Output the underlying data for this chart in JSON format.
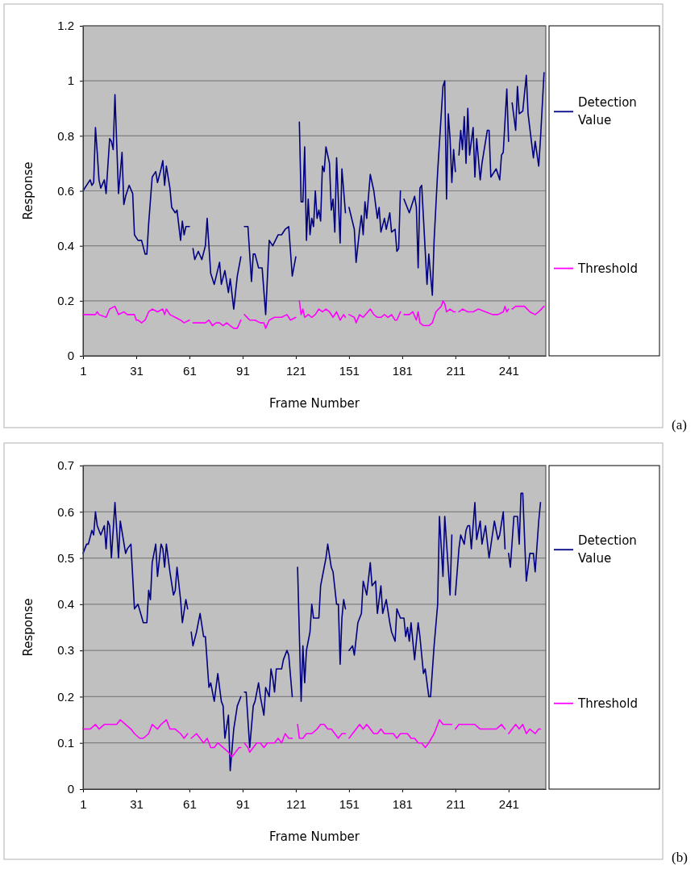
{
  "chart_data": [
    {
      "type": "line",
      "xlabel": "Frame Number",
      "ylabel": "Response",
      "xlim": [
        1,
        262
      ],
      "xticks": [
        1,
        31,
        61,
        91,
        121,
        151,
        181,
        211,
        241
      ],
      "ylim": [
        0,
        1.2
      ],
      "yticks": [
        0,
        0.2,
        0.4,
        0.6,
        0.8,
        1,
        1.2
      ],
      "grid": "y",
      "legend": "right",
      "marker": "none",
      "line_style": "solid",
      "annotations": [
        "(a)"
      ],
      "series": [
        {
          "name": "Detection Value",
          "color": "#000080",
          "x": [
            1,
            5,
            6,
            7,
            8,
            9,
            10,
            11,
            13,
            14,
            16,
            17,
            18,
            19,
            21,
            23,
            24,
            25,
            27,
            29,
            30,
            32,
            34,
            36,
            37,
            38,
            40,
            42,
            43,
            45,
            46,
            47,
            48,
            50,
            51,
            53,
            54,
            56,
            57,
            58,
            59,
            61,
            62,
            63,
            64,
            66,
            68,
            70,
            71,
            73,
            75,
            78,
            79,
            81,
            83,
            84,
            86,
            88,
            90,
            91,
            92,
            94,
            96,
            97,
            98,
            100,
            102,
            104,
            106,
            108,
            111,
            113,
            115,
            117,
            119,
            121,
            122,
            123,
            124,
            125,
            126,
            127,
            128,
            129,
            130,
            131,
            132,
            133,
            134,
            135,
            136,
            137,
            138,
            140,
            141,
            142,
            143,
            144,
            146,
            147,
            149,
            150,
            151,
            154,
            155,
            157,
            158,
            159,
            160,
            161,
            163,
            165,
            167,
            168,
            169,
            171,
            172,
            174,
            175,
            177,
            178,
            179,
            180,
            181,
            182,
            185,
            186,
            188,
            189,
            190,
            191,
            192,
            193,
            195,
            196,
            198,
            199,
            201,
            204,
            205,
            206,
            207,
            208,
            209,
            210,
            211,
            212,
            213,
            214,
            215,
            216,
            217,
            218,
            219,
            221,
            222,
            223,
            225,
            226,
            229,
            230,
            231,
            234,
            236,
            237,
            238,
            240,
            241,
            242,
            243,
            245,
            246,
            247,
            249,
            251,
            252,
            255,
            256,
            258,
            259,
            261
          ],
          "values": [
            0.6,
            0.64,
            0.62,
            0.63,
            0.83,
            0.74,
            0.64,
            0.61,
            0.64,
            0.59,
            0.79,
            0.78,
            0.75,
            0.95,
            0.59,
            0.74,
            0.55,
            0.58,
            0.62,
            0.59,
            0.44,
            0.42,
            0.42,
            0.37,
            0.37,
            0.48,
            0.65,
            0.67,
            0.63,
            0.68,
            0.71,
            0.62,
            0.69,
            0.61,
            0.54,
            0.52,
            0.53,
            0.42,
            0.49,
            0.44,
            0.47,
            0.47,
            null,
            0.39,
            0.35,
            0.38,
            0.35,
            0.4,
            0.5,
            0.3,
            0.26,
            0.34,
            0.26,
            0.31,
            0.23,
            0.28,
            0.17,
            0.29,
            0.36,
            null,
            0.47,
            0.47,
            0.27,
            0.37,
            0.37,
            0.32,
            0.32,
            0.15,
            0.42,
            0.4,
            0.44,
            0.44,
            0.46,
            0.47,
            0.29,
            0.36,
            null,
            0.85,
            0.56,
            0.56,
            0.76,
            0.42,
            0.57,
            0.44,
            0.5,
            0.47,
            0.6,
            0.5,
            0.53,
            0.49,
            0.69,
            0.67,
            0.76,
            0.7,
            0.53,
            0.57,
            0.45,
            0.72,
            0.41,
            0.68,
            0.52,
            null,
            0.54,
            0.46,
            0.34,
            0.46,
            0.51,
            0.44,
            0.56,
            0.5,
            0.66,
            0.6,
            0.5,
            0.54,
            0.45,
            0.5,
            0.46,
            0.52,
            0.45,
            0.46,
            0.38,
            0.39,
            0.6,
            null,
            0.57,
            0.52,
            0.54,
            0.58,
            0.54,
            0.32,
            0.61,
            0.62,
            0.5,
            0.26,
            0.37,
            0.22,
            0.42,
            0.67,
            0.98,
            1.0,
            0.57,
            0.88,
            0.79,
            0.63,
            0.75,
            0.67,
            null,
            0.73,
            0.82,
            0.75,
            0.87,
            0.7,
            0.9,
            0.73,
            0.83,
            0.65,
            0.79,
            0.64,
            0.7,
            0.82,
            0.82,
            0.65,
            0.68,
            0.64,
            0.73,
            0.74,
            0.97,
            0.78,
            null,
            0.92,
            0.82,
            0.98,
            0.88,
            0.89,
            1.02,
            0.88,
            0.72,
            0.78,
            0.69,
            0.79,
            1.03
          ]
        },
        {
          "name": "Threshold",
          "color": "#ff00ff",
          "x": [
            1,
            8,
            9,
            10,
            14,
            16,
            19,
            21,
            24,
            26,
            30,
            31,
            32,
            34,
            36,
            38,
            40,
            43,
            46,
            47,
            48,
            50,
            53,
            56,
            58,
            61,
            62,
            63,
            66,
            70,
            72,
            74,
            76,
            78,
            80,
            82,
            84,
            86,
            88,
            90,
            91,
            92,
            95,
            98,
            101,
            103,
            104,
            106,
            109,
            113,
            116,
            118,
            121,
            122,
            123,
            124,
            125,
            126,
            128,
            130,
            132,
            134,
            136,
            138,
            140,
            142,
            144,
            146,
            148,
            149,
            150,
            151,
            154,
            155,
            157,
            159,
            163,
            165,
            167,
            169,
            171,
            173,
            175,
            177,
            178,
            180,
            181,
            182,
            185,
            187,
            189,
            190,
            191,
            193,
            196,
            198,
            200,
            203,
            204,
            205,
            206,
            208,
            210,
            211,
            212,
            213,
            215,
            218,
            221,
            224,
            228,
            232,
            235,
            238,
            239,
            240,
            241,
            242,
            243,
            245,
            248,
            250,
            253,
            256,
            258,
            261
          ],
          "values": [
            0.15,
            0.15,
            0.16,
            0.15,
            0.14,
            0.17,
            0.18,
            0.15,
            0.16,
            0.15,
            0.15,
            0.13,
            0.13,
            0.12,
            0.13,
            0.16,
            0.17,
            0.16,
            0.17,
            0.15,
            0.17,
            0.15,
            0.14,
            0.13,
            0.12,
            0.13,
            null,
            0.12,
            0.12,
            0.12,
            0.13,
            0.11,
            0.12,
            0.12,
            0.11,
            0.12,
            0.11,
            0.1,
            0.1,
            0.13,
            null,
            0.15,
            0.13,
            0.13,
            0.12,
            0.12,
            0.1,
            0.13,
            0.14,
            0.14,
            0.15,
            0.13,
            0.14,
            null,
            0.2,
            0.15,
            0.17,
            0.14,
            0.15,
            0.14,
            0.15,
            0.17,
            0.16,
            0.17,
            0.16,
            0.14,
            0.16,
            0.13,
            0.15,
            0.14,
            null,
            0.15,
            0.14,
            0.12,
            0.15,
            0.14,
            0.17,
            0.15,
            0.14,
            0.14,
            0.15,
            0.14,
            0.15,
            0.13,
            0.13,
            0.16,
            null,
            0.15,
            0.15,
            0.16,
            0.13,
            0.16,
            0.12,
            0.11,
            0.11,
            0.12,
            0.16,
            0.18,
            0.2,
            0.19,
            0.16,
            0.17,
            0.16,
            0.16,
            null,
            0.16,
            0.17,
            0.16,
            0.16,
            0.17,
            0.16,
            0.15,
            0.15,
            0.16,
            0.18,
            0.16,
            0.17,
            null,
            0.17,
            0.18,
            0.18,
            0.18,
            0.16,
            0.15,
            0.16,
            0.18
          ]
        }
      ]
    },
    {
      "type": "line",
      "xlabel": "Frame Number",
      "ylabel": "Response",
      "xlim": [
        1,
        262
      ],
      "xticks": [
        1,
        31,
        61,
        91,
        121,
        151,
        181,
        211,
        241
      ],
      "ylim": [
        0,
        0.7
      ],
      "yticks": [
        0,
        0.1,
        0.2,
        0.3,
        0.4,
        0.5,
        0.6,
        0.7
      ],
      "grid": "y",
      "legend": "right",
      "marker": "none",
      "line_style": "solid",
      "annotations": [
        "(b)"
      ],
      "series": [
        {
          "name": "Detection Value",
          "color": "#000080",
          "x": [
            1,
            3,
            4,
            6,
            7,
            8,
            9,
            11,
            13,
            14,
            15,
            16,
            17,
            19,
            21,
            22,
            25,
            26,
            28,
            30,
            32,
            35,
            37,
            38,
            39,
            40,
            42,
            43,
            45,
            46,
            47,
            48,
            50,
            52,
            53,
            54,
            56,
            57,
            59,
            60,
            61,
            62,
            63,
            65,
            67,
            69,
            70,
            72,
            73,
            75,
            77,
            79,
            80,
            81,
            83,
            84,
            86,
            88,
            90,
            91,
            92,
            93,
            95,
            97,
            98,
            100,
            101,
            103,
            104,
            106,
            107,
            108,
            109,
            110,
            113,
            114,
            116,
            117,
            119,
            120,
            122,
            124,
            125,
            126,
            127,
            129,
            130,
            131,
            134,
            135,
            136,
            138,
            139,
            141,
            142,
            144,
            145,
            146,
            147,
            148,
            149,
            150,
            151,
            153,
            154,
            156,
            158,
            159,
            161,
            163,
            164,
            166,
            167,
            168,
            169,
            170,
            172,
            174,
            175,
            177,
            178,
            180,
            182,
            183,
            184,
            185,
            186,
            188,
            190,
            191,
            193,
            194,
            196,
            197,
            199,
            201,
            202,
            204,
            205,
            208,
            209,
            210,
            211,
            213,
            214,
            216,
            217,
            218,
            219,
            220,
            222,
            223,
            225,
            226,
            228,
            230,
            233,
            235,
            236,
            238,
            239,
            240,
            241,
            242,
            244,
            246,
            247,
            248,
            249,
            251,
            253,
            255,
            256,
            258,
            259
          ],
          "values": [
            0.51,
            0.53,
            0.53,
            0.56,
            0.55,
            0.6,
            0.57,
            0.55,
            0.57,
            0.52,
            0.58,
            0.57,
            0.5,
            0.62,
            0.5,
            0.58,
            0.51,
            0.52,
            0.53,
            0.39,
            0.4,
            0.36,
            0.36,
            0.43,
            0.41,
            0.49,
            0.53,
            0.46,
            0.53,
            0.52,
            0.48,
            0.53,
            0.47,
            0.42,
            0.43,
            0.48,
            0.41,
            0.36,
            0.41,
            0.39,
            null,
            0.34,
            0.31,
            0.34,
            0.38,
            0.33,
            0.33,
            0.22,
            0.23,
            0.19,
            0.25,
            0.19,
            0.18,
            0.11,
            0.16,
            0.04,
            0.13,
            0.18,
            0.2,
            null,
            0.21,
            0.21,
            0.09,
            0.18,
            0.19,
            0.23,
            0.2,
            0.16,
            0.22,
            0.2,
            0.26,
            0.24,
            0.21,
            0.26,
            0.26,
            0.28,
            0.3,
            0.29,
            0.2,
            null,
            0.48,
            0.19,
            0.31,
            0.23,
            0.3,
            0.34,
            0.4,
            0.37,
            0.37,
            0.44,
            0.46,
            0.5,
            0.53,
            0.48,
            0.47,
            0.4,
            0.4,
            0.27,
            0.37,
            0.41,
            0.39,
            null,
            0.3,
            0.31,
            0.29,
            0.36,
            0.38,
            0.45,
            0.42,
            0.49,
            0.44,
            0.45,
            0.38,
            0.41,
            0.44,
            0.38,
            0.41,
            0.36,
            0.34,
            0.32,
            0.39,
            0.37,
            0.37,
            0.33,
            0.35,
            0.32,
            0.36,
            0.28,
            0.36,
            0.33,
            0.25,
            0.26,
            0.2,
            0.2,
            0.31,
            0.4,
            0.59,
            0.46,
            0.59,
            0.42,
            0.55,
            null,
            0.42,
            0.52,
            0.55,
            0.53,
            0.56,
            0.57,
            0.57,
            0.52,
            0.62,
            0.54,
            0.58,
            0.53,
            0.57,
            0.5,
            0.58,
            0.54,
            0.55,
            0.6,
            0.52,
            null,
            0.51,
            0.48,
            0.59,
            0.59,
            0.53,
            0.64,
            0.64,
            0.45,
            0.51,
            0.51,
            0.47,
            0.58,
            0.62
          ]
        },
        {
          "name": "Threshold",
          "color": "#ff00ff",
          "x": [
            1,
            5,
            8,
            10,
            13,
            16,
            20,
            22,
            25,
            28,
            30,
            33,
            35,
            38,
            40,
            43,
            45,
            48,
            50,
            53,
            56,
            58,
            60,
            61,
            62,
            65,
            67,
            69,
            71,
            73,
            75,
            77,
            80,
            83,
            85,
            87,
            89,
            90,
            91,
            92,
            94,
            95,
            97,
            99,
            101,
            103,
            105,
            107,
            109,
            111,
            113,
            115,
            117,
            119,
            120,
            122,
            123,
            125,
            127,
            130,
            133,
            135,
            137,
            139,
            141,
            143,
            145,
            147,
            149,
            150,
            151,
            153,
            155,
            157,
            159,
            161,
            163,
            165,
            167,
            169,
            171,
            173,
            174,
            176,
            178,
            180,
            182,
            184,
            186,
            188,
            190,
            192,
            194,
            196,
            199,
            201,
            202,
            204,
            206,
            208,
            209,
            210,
            211,
            213,
            216,
            219,
            222,
            225,
            228,
            231,
            234,
            237,
            239,
            240,
            241,
            243,
            245,
            247,
            249,
            251,
            253,
            256,
            258,
            259
          ],
          "values": [
            0.13,
            0.13,
            0.14,
            0.13,
            0.14,
            0.14,
            0.14,
            0.15,
            0.14,
            0.13,
            0.12,
            0.11,
            0.11,
            0.12,
            0.14,
            0.13,
            0.14,
            0.15,
            0.13,
            0.13,
            0.12,
            0.11,
            0.12,
            null,
            0.11,
            0.12,
            0.11,
            0.1,
            0.11,
            0.09,
            0.09,
            0.1,
            0.09,
            0.08,
            0.07,
            0.08,
            0.09,
            0.09,
            null,
            0.1,
            0.09,
            0.08,
            0.09,
            0.1,
            0.1,
            0.09,
            0.1,
            0.1,
            0.1,
            0.11,
            0.1,
            0.12,
            0.11,
            0.11,
            null,
            0.14,
            0.11,
            0.11,
            0.12,
            0.12,
            0.13,
            0.14,
            0.14,
            0.13,
            0.13,
            0.12,
            0.11,
            0.12,
            0.12,
            null,
            0.11,
            0.12,
            0.13,
            0.14,
            0.13,
            0.14,
            0.13,
            0.12,
            0.12,
            0.13,
            0.12,
            0.12,
            0.12,
            0.12,
            0.11,
            0.12,
            0.12,
            0.12,
            0.11,
            0.11,
            0.1,
            0.1,
            0.09,
            0.1,
            0.12,
            0.14,
            0.15,
            0.14,
            0.14,
            0.14,
            0.14,
            null,
            0.13,
            0.14,
            0.14,
            0.14,
            0.14,
            0.13,
            0.13,
            0.13,
            0.13,
            0.14,
            0.13,
            null,
            0.12,
            0.13,
            0.14,
            0.13,
            0.14,
            0.12,
            0.13,
            0.12,
            0.13,
            0.13
          ]
        }
      ]
    }
  ]
}
